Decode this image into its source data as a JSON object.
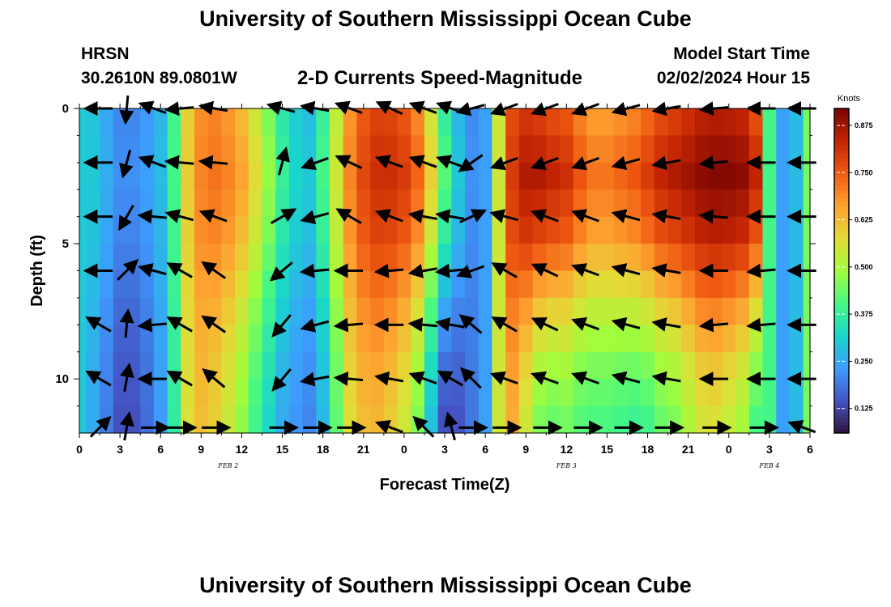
{
  "title_top": "University of Southern Mississippi Ocean Cube",
  "title_bottom": "University of Southern Mississippi Ocean Cube",
  "station": {
    "name": "HRSN",
    "location": "30.2610N  89.0801W"
  },
  "model": {
    "label": "Model Start Time",
    "start": "02/02/2024 Hour 15"
  },
  "chart_data": {
    "type": "heatmap",
    "title": "2-D Currents Speed-Magnitude",
    "xlabel": "Forecast Time(Z)",
    "ylabel": "Depth (ft)",
    "x_tick_labels": [
      "0",
      "3",
      "6",
      "9",
      "12",
      "15",
      "18",
      "21",
      "0",
      "3",
      "6",
      "9",
      "12",
      "15",
      "18",
      "21",
      "0",
      "3",
      "6"
    ],
    "x_range_hours": [
      0,
      54
    ],
    "date_labels": [
      {
        "text": "FEB 2",
        "hour": 11
      },
      {
        "text": "FEB 3",
        "hour": 36
      },
      {
        "text": "FEB 4",
        "hour": 51
      }
    ],
    "y_tick_labels": [
      "0",
      "5",
      "10"
    ],
    "y_tick_values": [
      0,
      5,
      10
    ],
    "y_range_ft": [
      0,
      12
    ],
    "colorbar": {
      "label": "Knots",
      "range": [
        0.06,
        0.92
      ],
      "ticks": [
        "0.125",
        "0.250",
        "0.375",
        "0.500",
        "0.625",
        "0.750",
        "0.875"
      ],
      "tick_values": [
        0.125,
        0.25,
        0.375,
        0.5,
        0.625,
        0.75,
        0.875
      ],
      "colors": [
        "#30123b",
        "#4454c4",
        "#3e9bfe",
        "#18d6cb",
        "#46f884",
        "#a2fc3c",
        "#e1dd37",
        "#fea331",
        "#f05b12",
        "#c42503",
        "#7a0403"
      ]
    },
    "speed_profiles": {
      "hours": [
        0,
        1,
        2,
        3,
        4,
        5,
        6,
        7,
        8,
        9,
        10,
        11,
        12,
        13,
        14,
        15,
        16,
        17,
        18,
        19,
        20,
        21,
        22,
        23,
        24,
        25,
        26,
        27,
        28,
        29,
        30,
        31,
        32,
        33,
        34,
        35,
        36,
        37,
        38,
        39,
        40,
        41,
        42,
        43,
        44,
        45,
        46,
        47,
        48,
        49,
        50,
        51,
        52,
        53,
        54
      ],
      "depth_weights": [
        0.3,
        0.0,
        0.3,
        0.9,
        1.35,
        1.6
      ],
      "top": [
        0.3,
        0.3,
        0.26,
        0.22,
        0.22,
        0.24,
        0.28,
        0.4,
        0.6,
        0.7,
        0.72,
        0.7,
        0.66,
        0.58,
        0.48,
        0.38,
        0.32,
        0.3,
        0.4,
        0.55,
        0.7,
        0.78,
        0.82,
        0.82,
        0.8,
        0.74,
        0.6,
        0.42,
        0.3,
        0.22,
        0.24,
        0.55,
        0.8,
        0.86,
        0.86,
        0.84,
        0.82,
        0.76,
        0.72,
        0.72,
        0.74,
        0.76,
        0.8,
        0.84,
        0.86,
        0.88,
        0.9,
        0.91,
        0.91,
        0.9,
        0.84,
        0.4,
        0.24,
        0.28,
        0.45
      ],
      "change": [
        0.0,
        -0.03,
        -0.04,
        -0.05,
        -0.05,
        -0.04,
        -0.03,
        -0.02,
        -0.02,
        -0.05,
        -0.08,
        -0.1,
        -0.12,
        -0.12,
        -0.1,
        -0.08,
        -0.06,
        -0.06,
        -0.08,
        -0.08,
        -0.08,
        -0.1,
        -0.12,
        -0.14,
        -0.16,
        -0.18,
        -0.2,
        -0.18,
        -0.1,
        -0.02,
        0.0,
        0.0,
        -0.1,
        -0.2,
        -0.26,
        -0.26,
        -0.24,
        -0.22,
        -0.2,
        -0.2,
        -0.22,
        -0.24,
        -0.26,
        -0.26,
        -0.26,
        -0.24,
        -0.22,
        -0.22,
        -0.24,
        -0.26,
        -0.28,
        0.0,
        0.0,
        0.0,
        0.0
      ]
    },
    "vectors": {
      "hours": [
        1.5,
        3.5,
        5.5,
        7.5,
        10,
        15,
        17.5,
        20,
        23,
        25.5,
        27.5,
        29,
        31.5,
        34.5,
        37.5,
        40.5,
        43.5,
        47,
        50.5,
        53.5
      ],
      "depths_ft": [
        0,
        2,
        4,
        6,
        8,
        10,
        11.8
      ],
      "angle_deg": [
        [
          180,
          265,
          160,
          185,
          170,
          165,
          170,
          160,
          155,
          160,
          160,
          195,
          200,
          200,
          200,
          195,
          190,
          185,
          180,
          180
        ],
        [
          180,
          255,
          160,
          175,
          175,
          75,
          200,
          155,
          160,
          160,
          160,
          215,
          200,
          200,
          200,
          195,
          190,
          185,
          180,
          180
        ],
        [
          180,
          240,
          175,
          165,
          160,
          30,
          195,
          150,
          160,
          170,
          170,
          25,
          165,
          160,
          160,
          165,
          170,
          175,
          180,
          180
        ],
        [
          180,
          45,
          165,
          150,
          145,
          220,
          185,
          180,
          185,
          190,
          185,
          200,
          150,
          155,
          160,
          165,
          170,
          180,
          185,
          180
        ],
        [
          150,
          85,
          185,
          150,
          145,
          230,
          195,
          185,
          180,
          175,
          170,
          140,
          150,
          155,
          160,
          165,
          170,
          185,
          185,
          180
        ],
        [
          150,
          80,
          180,
          150,
          140,
          230,
          190,
          175,
          170,
          160,
          150,
          135,
          160,
          160,
          160,
          165,
          170,
          180,
          180,
          180
        ],
        [
          45,
          80,
          0,
          0,
          0,
          0,
          0,
          0,
          160,
          135,
          105,
          0,
          0,
          0,
          0,
          0,
          0,
          0,
          0,
          160
        ]
      ]
    }
  }
}
